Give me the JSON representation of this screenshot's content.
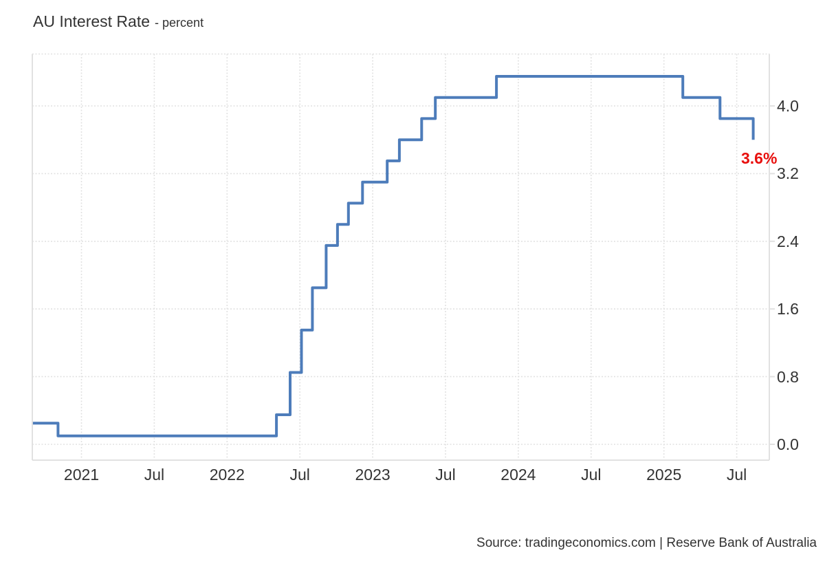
{
  "header": {
    "title": "AU Interest Rate",
    "subtitle": "- percent"
  },
  "footer": {
    "source": "Source: tradingeconomics.com | Reserve Bank of Australia"
  },
  "colors": {
    "line": "#4d7cba",
    "grid": "#e1e1e1",
    "axis": "#e1e1e1",
    "text": "#333333",
    "last_value": "#e8100e"
  },
  "chart_data": {
    "type": "line",
    "step": true,
    "title": "AU Interest Rate",
    "ylabel": "percent",
    "grid": "dotted",
    "legend_position": "none",
    "last_value_label": "3.6%",
    "x_ticks": [
      {
        "date": "2021-01-01",
        "label": "2021"
      },
      {
        "date": "2021-07-01",
        "label": "Jul"
      },
      {
        "date": "2022-01-01",
        "label": "2022"
      },
      {
        "date": "2022-07-01",
        "label": "Jul"
      },
      {
        "date": "2023-01-01",
        "label": "2023"
      },
      {
        "date": "2023-07-01",
        "label": "Jul"
      },
      {
        "date": "2024-01-01",
        "label": "2024"
      },
      {
        "date": "2024-07-01",
        "label": "Jul"
      },
      {
        "date": "2025-01-01",
        "label": "2025"
      },
      {
        "date": "2025-07-01",
        "label": "Jul"
      }
    ],
    "y_ticks": [
      "0.0",
      "0.8",
      "1.6",
      "2.4",
      "3.2",
      "4.0"
    ],
    "ylim": [
      -0.19,
      4.62
    ],
    "xlim": [
      "2020-08-28",
      "2025-09-20"
    ],
    "series": [
      {
        "name": "AU Interest Rate",
        "points": [
          {
            "date": "2020-09-01",
            "value": 0.25
          },
          {
            "date": "2020-11-03",
            "value": 0.1
          },
          {
            "date": "2022-05-03",
            "value": 0.35
          },
          {
            "date": "2022-06-07",
            "value": 0.85
          },
          {
            "date": "2022-07-05",
            "value": 1.35
          },
          {
            "date": "2022-08-02",
            "value": 1.85
          },
          {
            "date": "2022-09-06",
            "value": 2.35
          },
          {
            "date": "2022-10-04",
            "value": 2.6
          },
          {
            "date": "2022-11-01",
            "value": 2.85
          },
          {
            "date": "2022-12-06",
            "value": 3.1
          },
          {
            "date": "2023-02-07",
            "value": 3.35
          },
          {
            "date": "2023-03-07",
            "value": 3.6
          },
          {
            "date": "2023-05-02",
            "value": 3.85
          },
          {
            "date": "2023-06-06",
            "value": 4.1
          },
          {
            "date": "2023-11-07",
            "value": 4.35
          },
          {
            "date": "2025-02-18",
            "value": 4.1
          },
          {
            "date": "2025-05-20",
            "value": 3.85
          },
          {
            "date": "2025-08-12",
            "value": 3.6
          }
        ]
      }
    ]
  }
}
